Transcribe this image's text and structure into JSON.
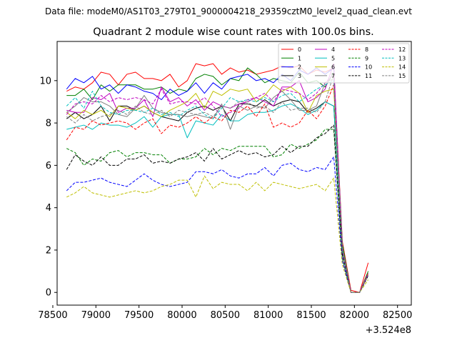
{
  "chart_data": {
    "type": "line",
    "suptitle": "Data file: modeM0/AS1T03_279T01_9000004218_29359cztM0_level2_quad_clean.evt",
    "title": "Quadrant 2 module wise count rates with 100.0s bins.",
    "xlabel": "",
    "ylabel": "",
    "x_offset_label": "+3.524e8",
    "xlim": [
      78550,
      82660
    ],
    "ylim": [
      -0.6,
      11.85
    ],
    "x_ticks": [
      78500,
      79000,
      79500,
      80000,
      80500,
      81000,
      81500,
      82000,
      82500
    ],
    "x_tick_labels": [
      "78500",
      "79000",
      "79500",
      "80000",
      "80500",
      "81000",
      "81500",
      "82000",
      "82500"
    ],
    "y_ticks": [
      0,
      2,
      4,
      6,
      8,
      10
    ],
    "y_tick_labels": [
      "0",
      "2",
      "4",
      "6",
      "8",
      "10"
    ],
    "grid": false,
    "legend_position": "top-right",
    "x_start": 78660,
    "x_step": 100,
    "series": [
      {
        "name": "0",
        "color": "#ff0000",
        "dash": "solid",
        "values": [
          9.5,
          9.7,
          9.6,
          9.9,
          10.4,
          10.3,
          9.8,
          10.3,
          10.4,
          10.1,
          10.1,
          10.0,
          10.3,
          9.7,
          10.0,
          10.8,
          10.7,
          10.8,
          10.3,
          10.6,
          10.4,
          10.5,
          10.3,
          10.4,
          10.5,
          10.7,
          10.6,
          10.7,
          10.3,
          10.5,
          10.4,
          10.6,
          2.4,
          0.1,
          0.0,
          1.4
        ]
      },
      {
        "name": "1",
        "color": "#008000",
        "dash": "solid",
        "values": [
          9.3,
          9.3,
          9.6,
          9.1,
          9.8,
          9.5,
          9.8,
          9.8,
          9.8,
          9.6,
          9.6,
          9.7,
          9.4,
          9.6,
          9.5,
          10.1,
          10.3,
          10.2,
          9.8,
          10.1,
          10.0,
          10.6,
          10.3,
          9.9,
          10.1,
          10.0,
          9.9,
          10.4,
          9.9,
          10.0,
          9.7,
          10.4,
          2.3,
          0.0,
          0.0,
          1.0
        ]
      },
      {
        "name": "2",
        "color": "#0000ff",
        "dash": "solid",
        "values": [
          9.6,
          10.1,
          9.9,
          10.2,
          9.6,
          9.8,
          9.4,
          9.8,
          9.7,
          9.5,
          9.4,
          9.1,
          9.6,
          9.3,
          9.5,
          9.9,
          9.4,
          9.9,
          9.6,
          10.1,
          10.2,
          10.3,
          10.0,
          10.1,
          9.9,
          10.3,
          10.0,
          10.5,
          10.3,
          10.6,
          10.3,
          10.6,
          2.0,
          0.0,
          0.0,
          0.9
        ]
      },
      {
        "name": "3",
        "color": "#000000",
        "dash": "solid",
        "values": [
          8.2,
          8.5,
          8.2,
          8.4,
          8.8,
          8.1,
          8.8,
          8.8,
          8.6,
          8.8,
          8.5,
          8.3,
          8.2,
          8.1,
          8.5,
          8.7,
          8.8,
          8.6,
          8.8,
          8.1,
          8.9,
          8.9,
          8.8,
          9.1,
          8.8,
          9.0,
          9.1,
          9.0,
          8.5,
          8.7,
          9.0,
          8.8,
          2.0,
          0.0,
          0.0,
          0.8
        ]
      },
      {
        "name": "4",
        "color": "#c000c0",
        "dash": "solid",
        "values": [
          8.6,
          8.5,
          8.5,
          9.2,
          9.1,
          9.4,
          8.5,
          8.7,
          8.7,
          9.1,
          8.3,
          9.7,
          9.0,
          9.2,
          8.8,
          9.1,
          8.6,
          9.0,
          8.8,
          8.7,
          8.9,
          9.0,
          9.2,
          9.0,
          8.8,
          9.7,
          9.7,
          10.0,
          9.0,
          9.2,
          9.6,
          10.8,
          2.1,
          0.0,
          0.0,
          0.9
        ]
      },
      {
        "name": "5",
        "color": "#00bfbf",
        "dash": "solid",
        "values": [
          7.7,
          7.8,
          7.9,
          7.7,
          8.0,
          7.9,
          7.9,
          7.8,
          8.0,
          8.3,
          7.8,
          8.3,
          8.4,
          8.4,
          7.3,
          8.1,
          8.0,
          7.9,
          8.4,
          8.1,
          8.1,
          8.4,
          8.5,
          8.5,
          8.6,
          8.8,
          8.9,
          8.7,
          8.4,
          8.6,
          9.0,
          8.8,
          1.9,
          0.0,
          0.0,
          0.8
        ]
      },
      {
        "name": "6",
        "color": "#bfbf00",
        "dash": "solid",
        "values": [
          8.5,
          8.2,
          8.6,
          8.4,
          8.6,
          8.3,
          8.8,
          8.7,
          8.6,
          8.8,
          8.5,
          8.3,
          8.6,
          8.8,
          9.0,
          9.4,
          8.7,
          9.5,
          9.3,
          9.6,
          9.5,
          9.6,
          9.0,
          9.3,
          9.8,
          9.5,
          9.7,
          9.4,
          8.5,
          9.3,
          9.5,
          9.6,
          2.0,
          0.0,
          0.0,
          0.9
        ]
      },
      {
        "name": "7",
        "color": "#808080",
        "dash": "solid",
        "values": [
          8.5,
          8.8,
          9.2,
          9.0,
          9.0,
          8.8,
          8.4,
          8.3,
          8.7,
          9.3,
          8.7,
          8.5,
          8.4,
          8.4,
          8.3,
          8.4,
          8.3,
          8.2,
          8.9,
          7.7,
          8.8,
          8.6,
          8.8,
          8.7,
          9.2,
          9.5,
          9.1,
          8.6,
          8.6,
          8.8,
          9.9,
          10.1,
          2.1,
          0.0,
          0.0,
          0.8
        ]
      },
      {
        "name": "8",
        "color": "#ff0000",
        "dash": "dashed",
        "values": [
          7.2,
          7.8,
          7.7,
          8.1,
          7.9,
          8.0,
          8.1,
          8.0,
          7.7,
          8.0,
          8.2,
          7.5,
          7.9,
          7.8,
          8.0,
          8.3,
          8.0,
          8.3,
          8.1,
          8.6,
          8.5,
          8.8,
          8.3,
          8.9,
          7.8,
          8.0,
          7.8,
          8.0,
          8.6,
          8.2,
          8.8,
          9.8,
          1.9,
          0.0,
          0.0,
          0.9
        ]
      },
      {
        "name": "9",
        "color": "#008000",
        "dash": "dashed",
        "values": [
          6.8,
          6.6,
          6.0,
          6.3,
          6.2,
          6.6,
          6.7,
          6.4,
          6.6,
          6.6,
          6.5,
          6.5,
          6.1,
          6.3,
          6.3,
          6.4,
          6.8,
          6.5,
          6.8,
          6.7,
          6.9,
          6.9,
          6.9,
          6.9,
          6.4,
          6.5,
          7.0,
          6.8,
          7.0,
          7.2,
          7.7,
          7.7,
          1.6,
          0.0,
          0.0,
          0.8
        ]
      },
      {
        "name": "10",
        "color": "#0000ff",
        "dash": "dashed",
        "values": [
          4.8,
          5.2,
          5.2,
          5.3,
          5.4,
          5.2,
          5.1,
          5.0,
          5.3,
          5.6,
          5.3,
          5.1,
          5.0,
          5.1,
          5.2,
          5.7,
          5.7,
          5.6,
          5.8,
          5.5,
          5.4,
          5.6,
          5.6,
          5.9,
          5.5,
          6.0,
          6.1,
          5.8,
          5.7,
          5.9,
          5.8,
          6.4,
          1.5,
          0.0,
          0.0,
          0.8
        ]
      },
      {
        "name": "11",
        "color": "#000000",
        "dash": "dashed",
        "values": [
          5.8,
          6.5,
          6.2,
          6.0,
          6.4,
          6.0,
          6.0,
          6.3,
          6.3,
          6.5,
          6.1,
          6.2,
          6.1,
          6.3,
          6.4,
          6.6,
          6.2,
          6.8,
          6.3,
          6.5,
          6.7,
          6.5,
          6.6,
          6.4,
          6.5,
          6.9,
          6.6,
          6.9,
          6.9,
          7.3,
          7.5,
          7.9,
          1.8,
          0.0,
          0.0,
          0.8
        ]
      },
      {
        "name": "12",
        "color": "#c000c0",
        "dash": "dashed",
        "values": [
          8.4,
          8.9,
          9.0,
          8.9,
          9.3,
          9.0,
          9.2,
          9.1,
          9.2,
          9.1,
          8.9,
          9.6,
          8.9,
          9.0,
          9.0,
          8.9,
          9.2,
          8.8,
          8.3,
          8.5,
          8.7,
          9.1,
          9.2,
          9.4,
          9.0,
          9.6,
          9.5,
          9.4,
          9.1,
          9.4,
          9.9,
          10.3,
          2.0,
          0.0,
          0.0,
          0.9
        ]
      },
      {
        "name": "13",
        "color": "#00bfbf",
        "dash": "dashed",
        "values": [
          8.8,
          9.2,
          8.7,
          9.5,
          8.8,
          8.5,
          8.4,
          8.6,
          8.6,
          8.5,
          8.7,
          8.4,
          8.5,
          8.3,
          8.6,
          8.8,
          8.4,
          8.2,
          8.7,
          9.2,
          9.0,
          9.1,
          9.0,
          9.2,
          9.0,
          9.3,
          9.4,
          9.0,
          9.3,
          9.6,
          9.8,
          10.0,
          2.0,
          0.0,
          0.0,
          0.8
        ]
      },
      {
        "name": "14",
        "color": "#bfbf00",
        "dash": "dashed",
        "values": [
          4.5,
          4.7,
          5.0,
          4.7,
          4.6,
          4.5,
          4.6,
          4.7,
          4.8,
          4.7,
          4.8,
          5.0,
          5.1,
          5.3,
          5.3,
          4.5,
          5.5,
          4.9,
          5.2,
          5.1,
          5.1,
          4.8,
          5.2,
          4.8,
          5.2,
          5.1,
          5.0,
          4.9,
          5.0,
          5.1,
          4.8,
          5.4,
          1.3,
          0.0,
          0.0,
          0.6
        ]
      },
      {
        "name": "15",
        "color": "#808080",
        "dash": "dashed",
        "values": [
          8.3,
          8.0,
          8.4,
          8.1,
          8.3,
          8.4,
          8.6,
          8.4,
          8.8,
          8.5,
          8.4,
          8.6,
          8.3,
          8.6,
          8.5,
          8.4,
          8.5,
          8.3,
          8.8,
          8.7,
          9.0,
          9.0,
          8.7,
          8.8,
          8.5,
          9.0,
          8.6,
          8.7,
          8.7,
          8.5,
          9.0,
          10.3,
          2.1,
          0.0,
          0.0,
          0.8
        ]
      }
    ]
  }
}
